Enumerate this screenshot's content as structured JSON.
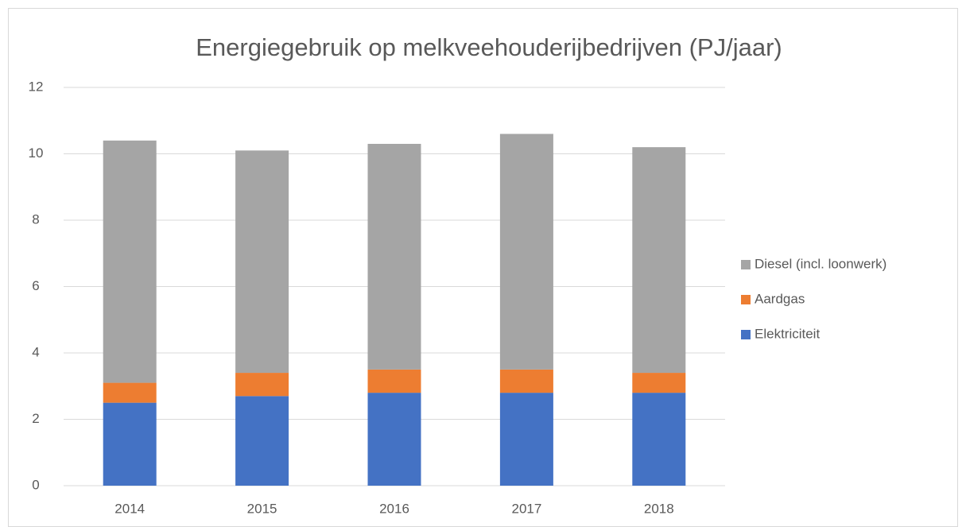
{
  "chart_data": {
    "type": "stacked_bar",
    "title": "Energiegebruik op melkveehouderijbedrijven (PJ/jaar)",
    "categories": [
      "2014",
      "2015",
      "2016",
      "2017",
      "2018"
    ],
    "series": [
      {
        "name": "Elektriciteit",
        "color": "#4472c4",
        "values": [
          2.5,
          2.7,
          2.8,
          2.8,
          2.8
        ]
      },
      {
        "name": "Aardgas",
        "color": "#ed7d31",
        "values": [
          0.6,
          0.7,
          0.7,
          0.7,
          0.6
        ]
      },
      {
        "name": "Diesel (incl. loonwerk)",
        "color": "#a5a5a5",
        "values": [
          7.3,
          6.7,
          6.8,
          7.1,
          6.8
        ]
      }
    ],
    "ylim": [
      0,
      12
    ],
    "yticks": [
      0,
      2,
      4,
      6,
      8,
      10,
      12
    ],
    "grid": true,
    "legend": "right"
  }
}
